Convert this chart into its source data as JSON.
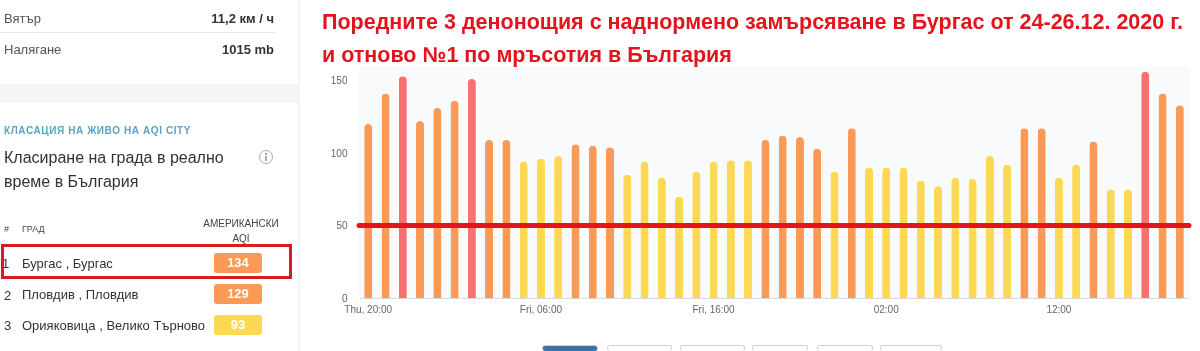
{
  "chart_data": [
    {
      "type": "other",
      "title": "Класиране на града в реално време в България",
      "subtitle": "КЛАСАЦИЯ НА ЖИВО НА AQI CITY",
      "annotations": [
        "Вятър",
        "11,2 км / ч",
        "Налягане",
        "1015 mb",
        "#",
        "ГРАД",
        "АМЕРИКАНСКИ AQI",
        "1",
        "2",
        "3",
        "Бургас , Бургас",
        "Пловдив , Пловдив",
        "Орияковица , Велико Търново",
        "134",
        "129",
        "93"
      ]
    },
    {
      "type": "bar",
      "title": "Поредните 3 денонощия с наднормено замърсяване в Бургас от 24-26.12. 2020 г. и отново №1 по мръсотия в България",
      "categories": [
        "Thu, 20:00",
        null,
        null,
        null,
        null,
        null,
        null,
        null,
        null,
        null,
        "Fri, 06:00",
        null,
        null,
        null,
        null,
        null,
        null,
        null,
        null,
        null,
        "Fri, 16:00",
        null,
        null,
        null,
        null,
        null,
        null,
        null,
        null,
        null,
        "02:00",
        null,
        null,
        null,
        null,
        null,
        null,
        null,
        null,
        null,
        "12:00",
        null,
        null,
        null,
        null,
        null,
        null,
        null
      ],
      "values": [
        120,
        141,
        153,
        122,
        131,
        136,
        151,
        109,
        109,
        94,
        96,
        98,
        106,
        105,
        104,
        85,
        94,
        83,
        70,
        87,
        94,
        95,
        95,
        109,
        112,
        111,
        103,
        87,
        117,
        90,
        90,
        90,
        81,
        77,
        83,
        82,
        98,
        92,
        117,
        117,
        83,
        92,
        108,
        75,
        75,
        156,
        141,
        133
      ],
      "colors": [
        "#fb9a55",
        "#fb9a55",
        "#f87171",
        "#fb9a55",
        "#fb9a55",
        "#fb9a55",
        "#f87171",
        "#fb9a55",
        "#fb9a55",
        "#fdd853",
        "#fdd853",
        "#fdd853",
        "#fb9a55",
        "#fb9a55",
        "#fb9a55",
        "#fdd853",
        "#fdd853",
        "#fdd853",
        "#fdd853",
        "#fdd853",
        "#fdd853",
        "#fdd853",
        "#fdd853",
        "#fb9a55",
        "#fb9a55",
        "#fb9a55",
        "#fb9a55",
        "#fdd853",
        "#fb9a55",
        "#fdd853",
        "#fdd853",
        "#fdd853",
        "#fdd853",
        "#fdd853",
        "#fdd853",
        "#fdd853",
        "#fdd853",
        "#fdd853",
        "#fb9a55",
        "#fb9a55",
        "#fdd853",
        "#fdd853",
        "#fb9a55",
        "#fdd853",
        "#fdd853",
        "#f87171",
        "#fb9a55",
        "#fb9a55"
      ],
      "ylim": [
        0,
        160
      ],
      "yticks": [
        0,
        50,
        100,
        150
      ],
      "ref_lines": [
        {
          "axis": "y",
          "value": 50,
          "color": "#e3141c"
        }
      ]
    }
  ]
}
